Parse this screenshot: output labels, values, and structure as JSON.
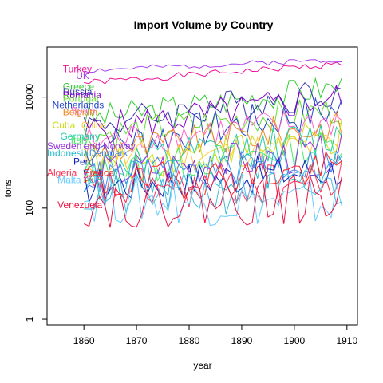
{
  "chart_data": {
    "type": "line",
    "title": "Import Volume by Country",
    "xlabel": "year",
    "ylabel": "tons",
    "xlim": [
      1853,
      1912
    ],
    "ylim_log10": [
      -0.1,
      4.9
    ],
    "log_y": true,
    "x_ticks": [
      1860,
      1870,
      1880,
      1890,
      1900,
      1910
    ],
    "y_ticks": [
      {
        "value": 1,
        "label": "1"
      },
      {
        "value": 100,
        "label": "100"
      },
      {
        "value": 10000,
        "label": "10000"
      }
    ],
    "grid": false,
    "series": [
      {
        "name": "Turkey",
        "color": "#ee1199",
        "start": 1860,
        "end": 1909,
        "base": 18000,
        "trend": 2.2,
        "vol": 0.06,
        "seed": 1,
        "label_x": 1856,
        "label_y": 28000
      },
      {
        "name": "UK",
        "color": "#aa44ee",
        "start": 1860,
        "end": 1909,
        "base": 30000,
        "trend": 1.6,
        "vol": 0.05,
        "seed": 2,
        "label_x": 1858.5,
        "label_y": 21000
      },
      {
        "name": "Greece",
        "color": "#33cc33",
        "start": 1860,
        "end": 1909,
        "base": 4000,
        "trend": 4.0,
        "vol": 0.25,
        "seed": 3,
        "label_x": 1856,
        "label_y": 13500
      },
      {
        "name": "Russia",
        "color": "#3333aa",
        "start": 1860,
        "end": 1909,
        "base": 3000,
        "trend": 4.5,
        "vol": 0.3,
        "seed": 4,
        "label_x": 1856,
        "label_y": 11000
      },
      {
        "name": "Romania",
        "color": "#8800cc",
        "start": 1860,
        "end": 1909,
        "base": 2500,
        "trend": 4.0,
        "vol": 0.3,
        "seed": 5,
        "label_x": 1856,
        "label_y": 9500
      },
      {
        "name": "Portugal",
        "color": "#66dd33",
        "start": 1860,
        "end": 1909,
        "base": 2000,
        "trend": 3.0,
        "vol": 0.28,
        "seed": 6,
        "label_x": 1856,
        "label_y": 8300
      },
      {
        "name": "Netherlands",
        "color": "#2244cc",
        "start": 1860,
        "end": 1909,
        "base": 1200,
        "trend": 5.0,
        "vol": 0.35,
        "seed": 7,
        "label_x": 1854,
        "label_y": 6300
      },
      {
        "name": "Spain",
        "color": "#ff66cc",
        "start": 1860,
        "end": 1909,
        "base": 1500,
        "trend": 2.5,
        "vol": 0.3,
        "seed": 8,
        "label_x": 1857.5,
        "label_y": 5000
      },
      {
        "name": "Belgium",
        "color": "#ee8822",
        "start": 1860,
        "end": 1909,
        "base": 1000,
        "trend": 3.0,
        "vol": 0.3,
        "seed": 9,
        "label_x": 1856,
        "label_y": 4700
      },
      {
        "name": "Cuba",
        "color": "#ccdd11",
        "start": 1860,
        "end": 1909,
        "base": 600,
        "trend": 3.0,
        "vol": 0.35,
        "seed": 10,
        "label_x": 1854,
        "label_y": 2700
      },
      {
        "name": "China",
        "color": "#ffcc44",
        "start": 1860,
        "end": 1909,
        "base": 700,
        "trend": 2.0,
        "vol": 0.3,
        "seed": 11,
        "label_x": 1859.5,
        "label_y": 2700
      },
      {
        "name": "Germany",
        "color": "#22ccaa",
        "start": 1860,
        "end": 1909,
        "base": 500,
        "trend": 4.0,
        "vol": 0.35,
        "seed": 12,
        "label_x": 1855.5,
        "label_y": 1700
      },
      {
        "name": "Italy",
        "color": "#44ee66",
        "start": 1860,
        "end": 1909,
        "base": 400,
        "trend": 3.5,
        "vol": 0.3,
        "seed": 13,
        "label_x": 1857.5,
        "label_y": 1450
      },
      {
        "name": "Sweden and Norway",
        "color": "#9933dd",
        "start": 1860,
        "end": 1909,
        "base": 400,
        "trend": 2.5,
        "vol": 0.35,
        "seed": 14,
        "label_x": 1853,
        "label_y": 1150
      },
      {
        "name": "Indonesia",
        "color": "#22bbcc",
        "start": 1860,
        "end": 1909,
        "base": 300,
        "trend": 2.0,
        "vol": 0.35,
        "seed": 15,
        "label_x": 1853,
        "label_y": 850
      },
      {
        "name": "Denmark",
        "color": "#4488ee",
        "start": 1860,
        "end": 1909,
        "base": 350,
        "trend": 2.0,
        "vol": 0.3,
        "seed": 16,
        "label_x": 1861,
        "label_y": 850
      },
      {
        "name": "Peru",
        "color": "#1122bb",
        "start": 1860,
        "end": 1909,
        "base": 250,
        "trend": 2.0,
        "vol": 0.35,
        "seed": 17,
        "label_x": 1858,
        "label_y": 600
      },
      {
        "name": "Algeria",
        "color": "#ff3355",
        "start": 1860,
        "end": 1909,
        "base": 200,
        "trend": 1.5,
        "vol": 0.4,
        "seed": 18,
        "label_x": 1853,
        "label_y": 380
      },
      {
        "name": "France",
        "color": "#ff2222",
        "start": 1860,
        "end": 1909,
        "base": 250,
        "trend": 2.0,
        "vol": 0.35,
        "seed": 19,
        "label_x": 1860,
        "label_y": 380
      },
      {
        "name": "Malta",
        "color": "#66ccff",
        "start": 1860,
        "end": 1909,
        "base": 150,
        "trend": 0.8,
        "vol": 0.45,
        "seed": 20,
        "label_x": 1855,
        "label_y": 280
      },
      {
        "name": "US",
        "color": "#44bbdd",
        "start": 1860,
        "end": 1909,
        "base": 150,
        "trend": 1.5,
        "vol": 0.4,
        "seed": 21,
        "label_x": 1861,
        "label_y": 280
      },
      {
        "name": "Venezuela",
        "color": "#ee1144",
        "start": 1860,
        "end": 1909,
        "base": 120,
        "trend": 1.2,
        "vol": 0.45,
        "seed": 22,
        "label_x": 1855,
        "label_y": 100
      }
    ]
  }
}
